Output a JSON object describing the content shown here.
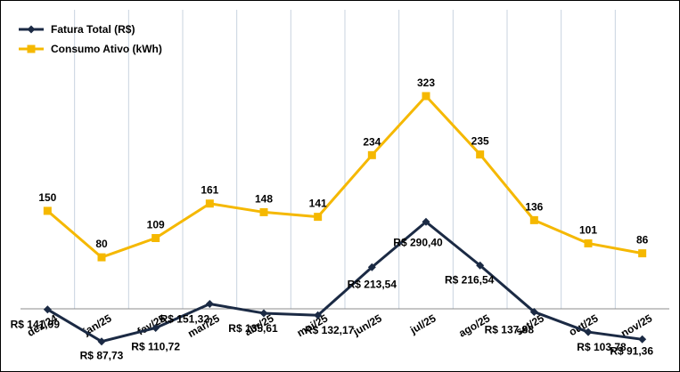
{
  "chart_data": {
    "type": "line",
    "title": "",
    "xlabel": "",
    "ylabel": "",
    "grid": "vertical",
    "legend_position": "top-left",
    "categories": [
      "dez/24",
      "jan/25",
      "fev/25",
      "mar/25",
      "abr/25",
      "mai/25",
      "jun/25",
      "jul/25",
      "ago/25",
      "set/25",
      "out/25",
      "nov/25"
    ],
    "series": [
      {
        "name": "Fatura Total (R$)",
        "color": "#1b2a44",
        "marker": "diamond",
        "values": [
          141.99,
          87.73,
          110.72,
          151.32,
          135.61,
          132.17,
          213.54,
          290.4,
          216.54,
          137.88,
          103.78,
          91.36
        ],
        "labels": [
          "R$ 141,99",
          "R$ 87,73",
          "R$ 110,72",
          "R$ 151,32",
          "R$ 135,61",
          "R$ 132,17",
          "R$ 213,54",
          "R$ 290,40",
          "R$ 216,54",
          "R$ 137,88",
          "R$ 103,78",
          "R$ 91,36"
        ]
      },
      {
        "name": "Consumo Ativo (kWh)",
        "color": "#f5b800",
        "marker": "square",
        "values": [
          150,
          80,
          109,
          161,
          148,
          141,
          234,
          323,
          235,
          136,
          101,
          86
        ],
        "labels": [
          "150",
          "80",
          "109",
          "161",
          "148",
          "141",
          "234",
          "323",
          "235",
          "136",
          "101",
          "86"
        ]
      }
    ]
  }
}
